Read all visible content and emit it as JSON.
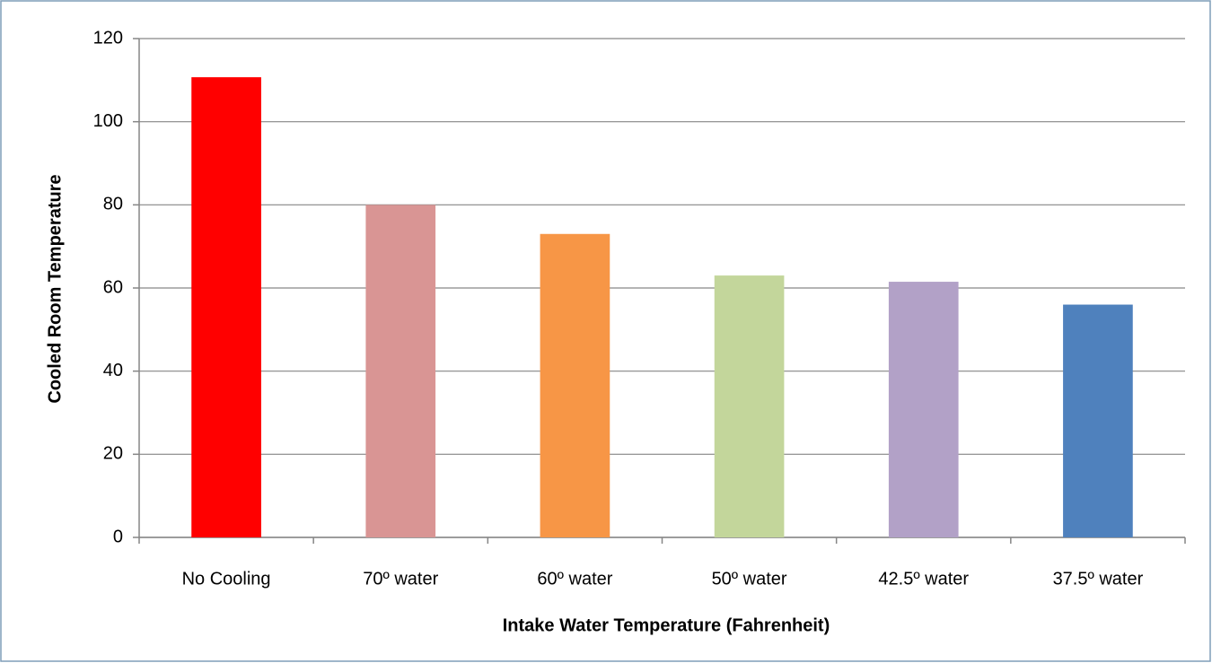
{
  "chart_data": {
    "type": "bar",
    "x_label": "Intake Water Temperature (Fahrenheit)",
    "y_label": "Cooled Room Temperature",
    "categories": [
      "No Cooling",
      "70º water",
      "60º water",
      "50º water",
      "42.5º water",
      "37.5º water"
    ],
    "values": [
      110.7,
      80,
      73,
      63,
      61.5,
      56
    ],
    "colors": [
      "#ff0000",
      "#d99594",
      "#f79646",
      "#c3d69b",
      "#b2a1c7",
      "#4f81bd"
    ],
    "ylim": [
      0,
      120
    ],
    "yticks": [
      0,
      20,
      40,
      60,
      80,
      100,
      120
    ],
    "grid": true
  }
}
